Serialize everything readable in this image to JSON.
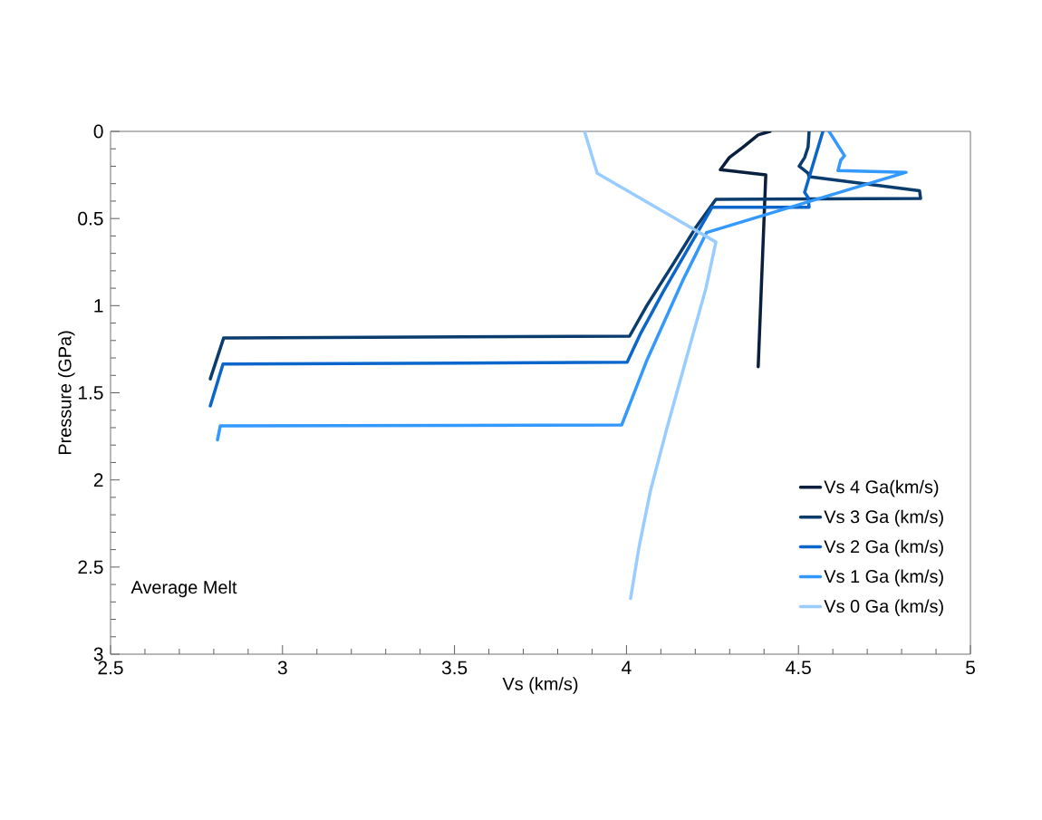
{
  "chart_data": {
    "type": "line",
    "xlabel": "Vs (km/s)",
    "ylabel": "Pressure (GPa)",
    "xlim": [
      2.5,
      5
    ],
    "ylim": [
      3,
      0
    ],
    "xticks": [
      2.5,
      3,
      3.5,
      4,
      4.5,
      5
    ],
    "yticks": [
      0,
      0.5,
      1,
      1.5,
      2,
      2.5,
      3
    ],
    "grid": false,
    "legend": "bottom right",
    "marker": "none",
    "line_style": "solid",
    "annotations": [
      "Average Melt"
    ],
    "series": [
      {
        "name": "Vs  4 Ga(km/s)",
        "color": "#0a1f3d",
        "x": [
          4.417,
          4.383,
          4.339,
          4.299,
          4.273,
          4.405,
          4.383
        ],
        "values": [
          0,
          0.02,
          0.09,
          0.15,
          0.22,
          0.25,
          1.35
        ]
      },
      {
        "name": "Vs 3 Ga (km/s)",
        "color": "#0b3c6e",
        "x": [
          4.531,
          4.528,
          4.518,
          4.502,
          4.528,
          4.531,
          4.852,
          4.855,
          4.26,
          4.202,
          4.136,
          4.059,
          4.009,
          2.829,
          2.79
        ],
        "values": [
          0,
          0.09,
          0.15,
          0.2,
          0.24,
          0.26,
          0.34,
          0.385,
          0.39,
          0.55,
          0.76,
          1.0,
          1.175,
          1.185,
          1.42
        ]
      },
      {
        "name": "Vs 2 Ga (km/s)",
        "color": "#0b66cc",
        "x": [
          4.571,
          4.518,
          4.528,
          4.531,
          4.249,
          4.183,
          4.107,
          4.041,
          4.002,
          2.827,
          2.79
        ],
        "values": [
          0,
          0.35,
          0.38,
          0.435,
          0.435,
          0.66,
          0.92,
          1.16,
          1.325,
          1.335,
          1.575
        ]
      },
      {
        "name": "Vs 1 Ga (km/s)",
        "color": "#3399ff",
        "x": [
          4.589,
          4.634,
          4.623,
          4.615,
          4.813,
          4.233,
          4.165,
          4.06,
          3.986,
          2.819,
          2.811
        ],
        "values": [
          0,
          0.14,
          0.165,
          0.225,
          0.235,
          0.58,
          0.85,
          1.31,
          1.685,
          1.69,
          1.77
        ]
      },
      {
        "name": "Vs 0 Ga (km/s)",
        "color": "#99ccff",
        "x": [
          3.878,
          3.915,
          4.26,
          4.231,
          4.173,
          4.118,
          4.07,
          4.036,
          4.012
        ],
        "values": [
          0,
          0.24,
          0.635,
          0.9,
          1.31,
          1.7,
          2.06,
          2.39,
          2.68
        ]
      }
    ]
  }
}
